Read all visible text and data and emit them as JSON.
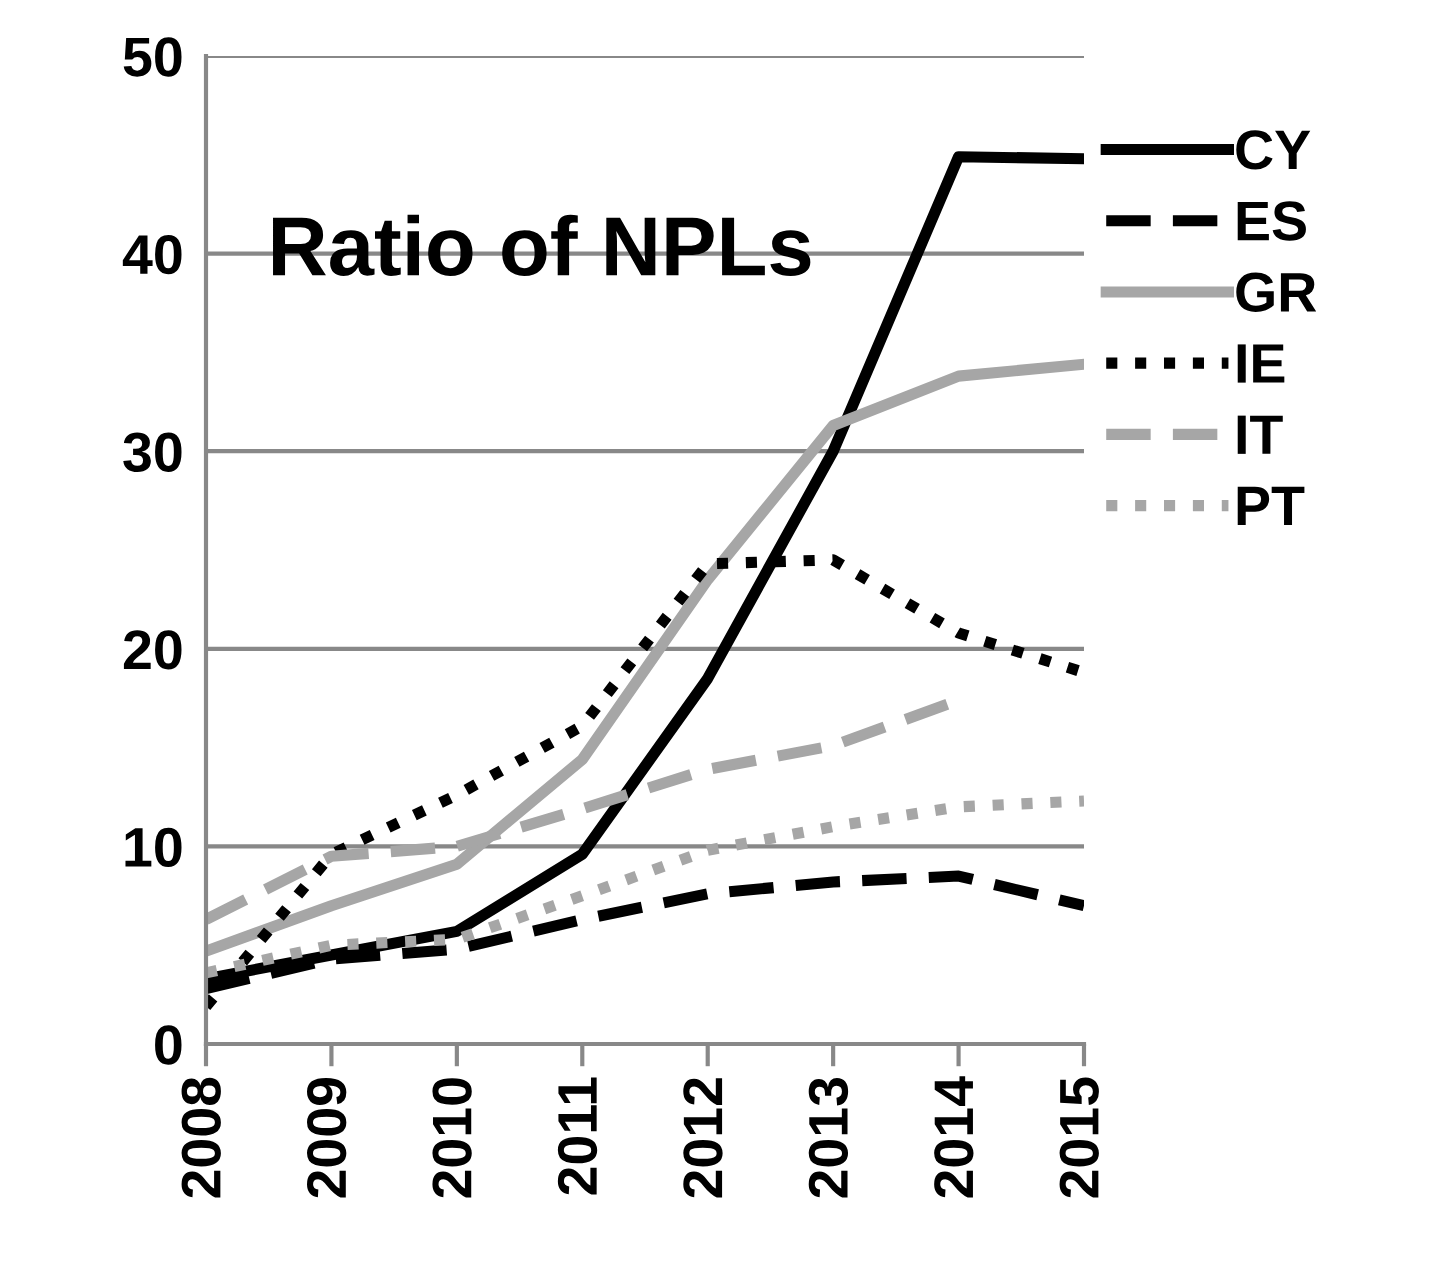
{
  "chart_data": {
    "type": "line",
    "title": "Ratio of NPLs",
    "categories": [
      "2008",
      "2009",
      "2010",
      "2011",
      "2012",
      "2013",
      "2014",
      "2015"
    ],
    "series": [
      {
        "name": "CY",
        "color": "#000000",
        "line_style": "solid",
        "values": [
          3.3,
          4.5,
          5.7,
          9.6,
          18.5,
          30,
          44.9,
          44.8
        ]
      },
      {
        "name": "ES",
        "color": "#000000",
        "line_style": "dashed",
        "values": [
          2.8,
          4.3,
          4.8,
          6.3,
          7.6,
          8.2,
          8.5,
          7.0
        ]
      },
      {
        "name": "GR",
        "color": "#a6a6a6",
        "line_style": "solid",
        "values": [
          4.7,
          7.0,
          9.1,
          14.4,
          23.5,
          31.3,
          33.8,
          34.4
        ]
      },
      {
        "name": "IE",
        "color": "#000000",
        "line_style": "dotted",
        "values": [
          1.9,
          9.6,
          12.6,
          16.1,
          24.3,
          24.5,
          20.8,
          18.8
        ]
      },
      {
        "name": "IT",
        "color": "#a6a6a6",
        "line_style": "dashed",
        "values": [
          6.3,
          9.5,
          10.0,
          11.9,
          13.9,
          15.1,
          17.4,
          null
        ]
      },
      {
        "name": "PT",
        "color": "#a6a6a6",
        "line_style": "dotted",
        "values": [
          3.6,
          5.0,
          5.3,
          7.5,
          9.8,
          11.0,
          12.0,
          12.3
        ]
      }
    ],
    "ylim": [
      0,
      50
    ],
    "yticks": [
      0,
      10,
      20,
      30,
      40,
      50
    ],
    "grid": "y",
    "legend": "right"
  }
}
